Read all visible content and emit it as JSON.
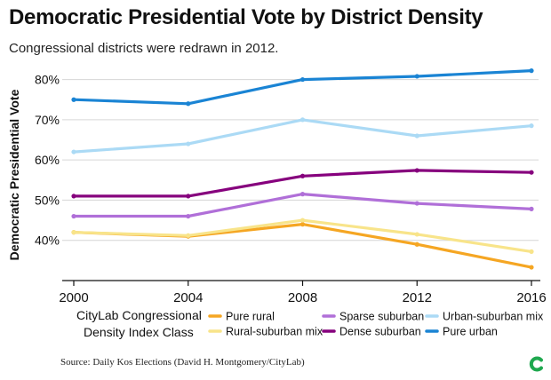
{
  "chart_data": {
    "type": "line",
    "title": "Democratic Presidential Vote by District Density",
    "subtitle": "Congressional districts were redrawn in 2012.",
    "ylabel": "Democratic Presidential Vote",
    "xlabel": "",
    "x": [
      2000,
      2004,
      2008,
      2012,
      2016
    ],
    "x_ticks": [
      "2000",
      "2004",
      "2008",
      "2012",
      "2016"
    ],
    "ylim": [
      30,
      83
    ],
    "y_ticks": [
      40,
      50,
      60,
      70,
      80
    ],
    "y_tick_labels": [
      "40%",
      "50%",
      "60%",
      "70%",
      "80%"
    ],
    "grid": "horizontal",
    "legend_title_line1": "CityLab Congressional",
    "legend_title_line2": "Density Index Class",
    "legend_placement": "bottom",
    "series": [
      {
        "name": "Pure rural",
        "color": "#f5a623",
        "values": [
          42,
          41,
          44,
          39,
          33.3
        ]
      },
      {
        "name": "Rural-suburban mix",
        "color": "#f8e48a",
        "values": [
          42,
          41.2,
          45,
          41.5,
          37.2
        ]
      },
      {
        "name": "Sparse suburban",
        "color": "#b06fd8",
        "values": [
          46,
          46,
          51.5,
          49.2,
          47.8
        ]
      },
      {
        "name": "Dense suburban",
        "color": "#86007d",
        "values": [
          51,
          51,
          56,
          57.4,
          56.9
        ]
      },
      {
        "name": "Urban-suburban mix",
        "color": "#abdaf5",
        "values": [
          62,
          64,
          70,
          66,
          68.5
        ]
      },
      {
        "name": "Pure urban",
        "color": "#1a84d4",
        "values": [
          75,
          74,
          80,
          80.8,
          82.2
        ]
      }
    ]
  },
  "source_text": "Source: Daily Kos Elections (David H. Montgomery/CityLab)",
  "logo_icon": "citylab-logo-icon",
  "logo_color": "#1fa84f"
}
